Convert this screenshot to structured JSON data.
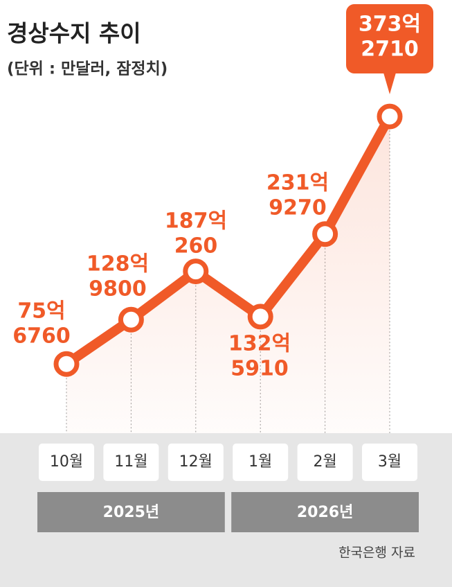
{
  "chart_data": {
    "type": "line",
    "title": "경상수지 추이",
    "subtitle": "(단위 : 만달러, 잠정치)",
    "categories": [
      "10월",
      "11월",
      "12월",
      "1월",
      "2월",
      "3월"
    ],
    "x_groups": [
      "2025년",
      "2026년"
    ],
    "values": [
      756760,
      1289800,
      1870260,
      1325910,
      2319270,
      3732710
    ],
    "value_labels": [
      [
        "75억",
        "6760"
      ],
      [
        "128억",
        "9800"
      ],
      [
        "187억",
        "260"
      ],
      [
        "132억",
        "5910"
      ],
      [
        "231억",
        "9270"
      ],
      [
        "373억",
        "2710"
      ]
    ],
    "color": "#f05a28",
    "ylim": [
      0,
      4000000
    ],
    "source": "한국은행 자료"
  }
}
